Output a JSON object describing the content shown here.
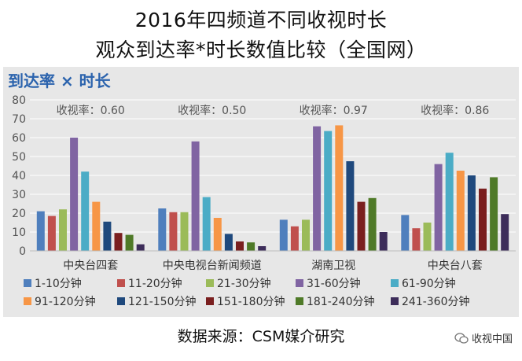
{
  "header": {
    "title_line1": "2016年四频道不同收视时长",
    "title_line2": "观众到达率*时长数值比较（全国网）"
  },
  "chart_data": {
    "type": "bar",
    "title": "到达率 × 时长",
    "ylim": [
      0,
      80
    ],
    "yticks": [
      0,
      10,
      20,
      30,
      40,
      50,
      60,
      70,
      80
    ],
    "grid": true,
    "legend_position": "bottom",
    "categories": [
      "中央台四套",
      "中央电视台新闻频道",
      "湖南卫视",
      "中央台八套"
    ],
    "annotations": [
      "收视率：0.60",
      "收视率：0.50",
      "收视率：0.97",
      "收视率：0.86"
    ],
    "series": [
      {
        "name": "1-10分钟",
        "color": "#4f7fbd",
        "values": [
          21,
          22.5,
          16.5,
          19
        ]
      },
      {
        "name": "11-20分钟",
        "color": "#c0504d",
        "values": [
          18.5,
          20.5,
          13,
          12
        ]
      },
      {
        "name": "21-30分钟",
        "color": "#9bbb59",
        "values": [
          22,
          20.5,
          16.5,
          15
        ]
      },
      {
        "name": "31-60分钟",
        "color": "#8064a2",
        "values": [
          60,
          58,
          66,
          46
        ]
      },
      {
        "name": "61-90分钟",
        "color": "#4bacc6",
        "values": [
          42,
          28.5,
          63.5,
          52
        ]
      },
      {
        "name": "91-120分钟",
        "color": "#f79646",
        "values": [
          26,
          17.5,
          66.5,
          42.5
        ]
      },
      {
        "name": "121-150分钟",
        "color": "#1f497d",
        "values": [
          15.5,
          9,
          47.5,
          40
        ]
      },
      {
        "name": "151-180分钟",
        "color": "#7a1f1f",
        "values": [
          9.5,
          5,
          26,
          33
        ]
      },
      {
        "name": "181-240分钟",
        "color": "#4f7a28",
        "values": [
          8.5,
          4.5,
          28,
          39
        ]
      },
      {
        "name": "241-360分钟",
        "color": "#3d2d5a",
        "values": [
          3.5,
          2.5,
          10,
          19.5
        ]
      }
    ]
  },
  "footer": {
    "source": "数据来源：CSM媒介研究",
    "watermark": "收视中国"
  }
}
